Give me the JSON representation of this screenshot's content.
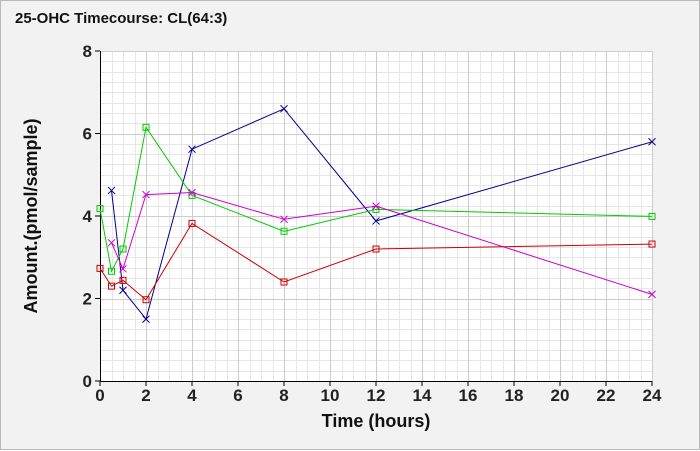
{
  "title": "25-OHC Timecourse: CL(64:3)",
  "chart_data": {
    "type": "line",
    "title": "25-OHC Timecourse: CL(64:3)",
    "xlabel": "Time (hours)",
    "ylabel": "Amount.(pmol/sample)",
    "xlim": [
      0,
      24
    ],
    "ylim": [
      0,
      8
    ],
    "xticks": [
      0,
      2,
      4,
      6,
      8,
      10,
      12,
      14,
      16,
      18,
      20,
      22,
      24
    ],
    "yticks": [
      0,
      2,
      4,
      6,
      8
    ],
    "grid": true,
    "colors": {
      "plot_background": "#ffffff",
      "minor_grid": "#e6e6e6",
      "major_grid": "#cccccc",
      "axis": "#000000"
    },
    "series": [
      {
        "color": "#00008b",
        "marker": "x",
        "points": [
          [
            0.5,
            4.62
          ],
          [
            1,
            2.2
          ],
          [
            2,
            1.5
          ],
          [
            4,
            5.62
          ],
          [
            8,
            6.6
          ],
          [
            12,
            3.88
          ],
          [
            24,
            5.8
          ]
        ]
      },
      {
        "color": "#00cc00",
        "marker": "square",
        "points": [
          [
            0,
            4.18
          ],
          [
            0.5,
            2.66
          ],
          [
            1,
            3.2
          ],
          [
            2,
            6.15
          ],
          [
            4,
            4.5
          ],
          [
            8,
            3.63
          ],
          [
            12,
            4.16
          ],
          [
            24,
            3.99
          ]
        ]
      },
      {
        "color": "#cc00cc",
        "marker": "x",
        "points": [
          [
            0.5,
            3.35
          ],
          [
            1,
            2.72
          ],
          [
            2,
            4.52
          ],
          [
            4,
            4.57
          ],
          [
            8,
            3.92
          ],
          [
            12,
            4.24
          ],
          [
            24,
            2.1
          ]
        ]
      },
      {
        "color": "#cc0000",
        "marker": "square",
        "points": [
          [
            0,
            2.73
          ],
          [
            0.5,
            2.3
          ],
          [
            1,
            2.44
          ],
          [
            2,
            1.97
          ],
          [
            4,
            3.82
          ],
          [
            8,
            2.4
          ],
          [
            12,
            3.2
          ],
          [
            24,
            3.32
          ]
        ]
      }
    ]
  }
}
